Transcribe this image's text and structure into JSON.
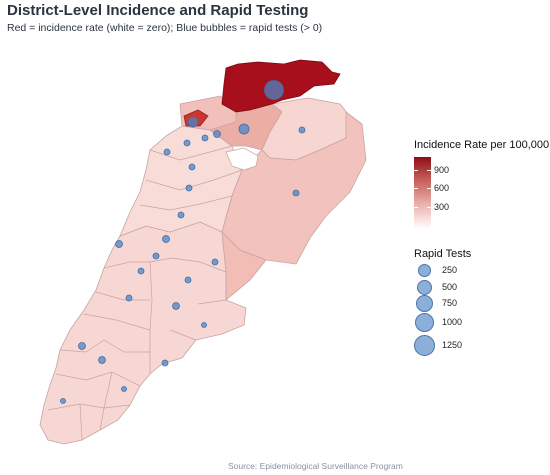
{
  "title": "District-Level Incidence and Rapid Testing",
  "subtitle": "Red = incidence rate (white = zero); Blue bubbles = rapid tests (> 0)",
  "caption": "Source: Epidemiological Surveillance Program",
  "legend": {
    "incidence": {
      "title": "Incidence Rate per 100,000",
      "labels": [
        "900",
        "600",
        "300"
      ],
      "color_low": "#ffffff",
      "color_high": "#8e0d17"
    },
    "tests": {
      "title": "Rapid Tests",
      "labels": [
        "250",
        "500",
        "750",
        "1000",
        "1250"
      ]
    }
  },
  "colors": {
    "bubble_fill": "#4d84c4",
    "border": "#c9a3a3",
    "max_district": "#a80f1c"
  }
}
